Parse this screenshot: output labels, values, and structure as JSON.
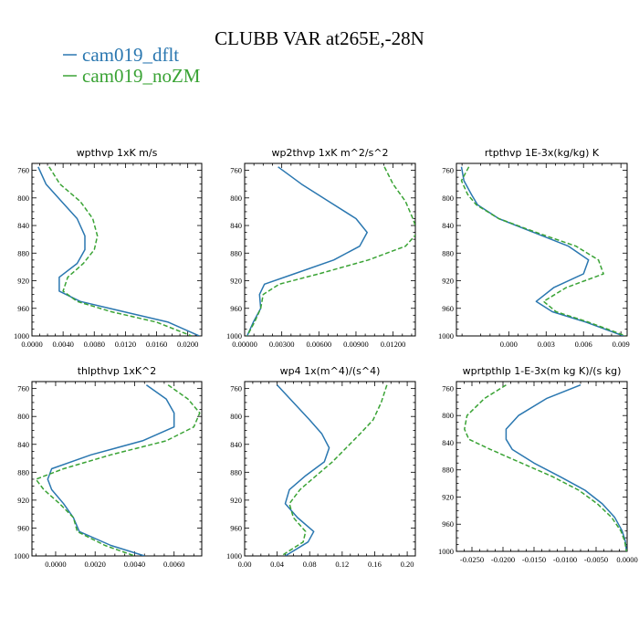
{
  "figure": {
    "title": "CLUBB VAR at265E,-28N",
    "legend": [
      {
        "label": "cam019_dflt",
        "color": "#2a77b0",
        "dash": "solid"
      },
      {
        "label": "cam019_noZM",
        "color": "#3aa335",
        "dash": "dashed"
      }
    ]
  },
  "chart_data": [
    {
      "type": "line",
      "title": "wpthvp   1xK m/s",
      "xlim": [
        0.0,
        0.0218
      ],
      "xticks": [
        0.0,
        0.004,
        0.008,
        0.012,
        0.016,
        0.02
      ],
      "xtick_labels": [
        "0.0000",
        "0.0040",
        "0.0080",
        "0.0120",
        "0.0160",
        "0.0200"
      ],
      "ylim": [
        1000,
        750
      ],
      "yticks": [
        760,
        800,
        840,
        880,
        920,
        960,
        1000
      ],
      "y": [
        755,
        780,
        805,
        830,
        855,
        875,
        895,
        915,
        935,
        950,
        965,
        980,
        1000
      ],
      "series": [
        {
          "name": "cam019_dflt",
          "values": [
            0.0008,
            0.0018,
            0.0038,
            0.0058,
            0.0068,
            0.0068,
            0.0058,
            0.0035,
            0.0035,
            0.0062,
            0.0118,
            0.0175,
            0.0215
          ]
        },
        {
          "name": "cam019_noZM",
          "values": [
            0.0022,
            0.0036,
            0.0062,
            0.0078,
            0.0084,
            0.008,
            0.0066,
            0.0046,
            0.004,
            0.0058,
            0.0102,
            0.016,
            0.0205
          ]
        }
      ]
    },
    {
      "type": "line",
      "title": "wp2thvp   1xK m^2/s^2",
      "xlim": [
        0.0,
        0.0138
      ],
      "xticks": [
        0.0,
        0.003,
        0.006,
        0.009,
        0.012
      ],
      "xtick_labels": [
        "0.00000",
        "0.00300",
        "0.00600",
        "0.00900",
        "0.01200"
      ],
      "ylim": [
        1000,
        750
      ],
      "yticks": [
        760,
        800,
        840,
        880,
        920,
        960,
        1000
      ],
      "y": [
        755,
        780,
        805,
        830,
        850,
        870,
        890,
        910,
        925,
        940,
        960,
        980,
        1000
      ],
      "series": [
        {
          "name": "cam019_dflt",
          "values": [
            0.0027,
            0.0046,
            0.0068,
            0.009,
            0.0099,
            0.0093,
            0.0072,
            0.004,
            0.0016,
            0.0012,
            0.0013,
            0.0007,
            0.0002
          ]
        },
        {
          "name": "cam019_noZM",
          "values": [
            0.0113,
            0.012,
            0.013,
            0.0136,
            0.014,
            0.013,
            0.01,
            0.006,
            0.0028,
            0.0015,
            0.0013,
            0.0008,
            0.0002
          ]
        }
      ]
    },
    {
      "type": "line",
      "title": "rtpthvp   1E-3x(kg/kg) K",
      "xlim": [
        -0.0042,
        0.0095
      ],
      "xticks": [
        0.0,
        0.003,
        0.006,
        0.009
      ],
      "xtick_labels": [
        "0.000",
        "0.003",
        "0.006",
        "0.009"
      ],
      "ylim": [
        1000,
        750
      ],
      "yticks": [
        760,
        800,
        840,
        880,
        920,
        960,
        1000
      ],
      "y": [
        755,
        775,
        795,
        810,
        830,
        850,
        870,
        890,
        910,
        930,
        950,
        965,
        980,
        1000
      ],
      "series": [
        {
          "name": "cam019_dflt",
          "values": [
            -0.0038,
            -0.0036,
            -0.003,
            -0.0025,
            -0.0008,
            0.002,
            0.0048,
            0.0064,
            0.006,
            0.0036,
            0.0022,
            0.0035,
            0.0062,
            0.0092
          ]
        },
        {
          "name": "cam019_noZM",
          "values": [
            -0.0032,
            -0.0038,
            -0.0033,
            -0.0026,
            -0.0008,
            0.0022,
            0.0054,
            0.0072,
            0.0076,
            0.0046,
            0.0028,
            0.0038,
            0.0064,
            0.0094
          ]
        }
      ]
    },
    {
      "type": "line",
      "title": "thlpthvp   1xK^2",
      "xlim": [
        -0.0012,
        0.0074
      ],
      "xticks": [
        0.0,
        0.002,
        0.004,
        0.006
      ],
      "xtick_labels": [
        "0.0000",
        "0.0020",
        "0.0040",
        "0.0060"
      ],
      "ylim": [
        1000,
        750
      ],
      "yticks": [
        760,
        800,
        840,
        880,
        920,
        960,
        1000
      ],
      "y": [
        755,
        775,
        795,
        815,
        835,
        855,
        875,
        890,
        905,
        925,
        945,
        965,
        985,
        1000
      ],
      "series": [
        {
          "name": "cam019_dflt",
          "values": [
            0.0046,
            0.0056,
            0.006,
            0.006,
            0.0044,
            0.0018,
            -0.0002,
            -0.0004,
            -0.0002,
            0.0004,
            0.0009,
            0.0012,
            0.0028,
            0.0045
          ]
        },
        {
          "name": "cam019_noZM",
          "values": [
            0.0057,
            0.0067,
            0.0073,
            0.007,
            0.0056,
            0.0028,
            0.0004,
            -0.001,
            -0.0006,
            0.0002,
            0.0009,
            0.0011,
            0.0025,
            0.004
          ]
        }
      ]
    },
    {
      "type": "line",
      "title": "wp4   1x(m^4)/(s^4)",
      "xlim": [
        0.0,
        0.21
      ],
      "xticks": [
        0.0,
        0.04,
        0.08,
        0.12,
        0.16,
        0.2
      ],
      "xtick_labels": [
        "0.00",
        "0.04",
        "0.08",
        "0.12",
        "0.16",
        "0.20"
      ],
      "ylim": [
        1000,
        750
      ],
      "yticks": [
        760,
        800,
        840,
        880,
        920,
        960,
        1000
      ],
      "y": [
        755,
        780,
        805,
        825,
        845,
        865,
        885,
        905,
        925,
        945,
        965,
        980,
        1000
      ],
      "series": [
        {
          "name": "cam019_dflt",
          "values": [
            0.04,
            0.06,
            0.08,
            0.095,
            0.104,
            0.098,
            0.075,
            0.055,
            0.05,
            0.065,
            0.085,
            0.078,
            0.05
          ]
        },
        {
          "name": "cam019_noZM",
          "values": [
            0.175,
            0.168,
            0.158,
            0.142,
            0.125,
            0.108,
            0.088,
            0.068,
            0.055,
            0.06,
            0.075,
            0.072,
            0.045
          ]
        }
      ]
    },
    {
      "type": "line",
      "title": "wprtpthlp   1-E-3x(m kg K)/(s kg)",
      "xlim": [
        -0.0275,
        0.0
      ],
      "xticks": [
        -0.025,
        -0.02,
        -0.015,
        -0.01,
        -0.005,
        0.0
      ],
      "xtick_labels": [
        "-0.0250",
        "-0.0200",
        "-0.0150",
        "-0.0100",
        "-0.0050",
        "0.0000"
      ],
      "ylim": [
        1000,
        750
      ],
      "yticks": [
        760,
        800,
        840,
        880,
        920,
        960,
        1000
      ],
      "y": [
        755,
        775,
        800,
        820,
        835,
        850,
        870,
        890,
        910,
        930,
        950,
        970,
        985,
        1000
      ],
      "series": [
        {
          "name": "cam019_dflt",
          "values": [
            -0.0075,
            -0.013,
            -0.0175,
            -0.0195,
            -0.0195,
            -0.0185,
            -0.015,
            -0.0108,
            -0.0068,
            -0.004,
            -0.002,
            -0.0008,
            -0.0003,
            -0.0001
          ]
        },
        {
          "name": "cam019_noZM",
          "values": [
            -0.0195,
            -0.023,
            -0.0258,
            -0.0262,
            -0.0255,
            -0.022,
            -0.017,
            -0.012,
            -0.0078,
            -0.0048,
            -0.0025,
            -0.001,
            -0.0004,
            -0.0001
          ]
        }
      ]
    }
  ]
}
